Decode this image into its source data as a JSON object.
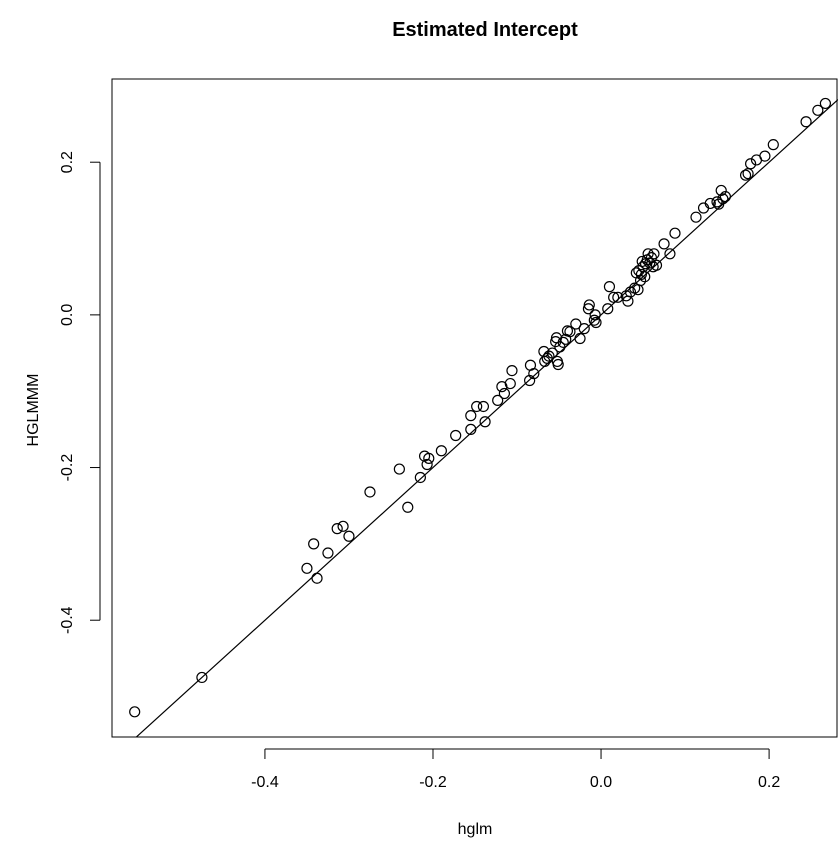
{
  "chart_data": {
    "type": "scatter",
    "title": "Estimated Intercept",
    "xlabel": "hglm",
    "ylabel": "HGLMMM",
    "xlim": [
      -0.582,
      0.282
    ],
    "ylim": [
      -0.553,
      0.309
    ],
    "xticks": [
      -0.4,
      -0.2,
      0.0,
      0.2
    ],
    "xtick_labels": [
      "-0.4",
      "-0.2",
      "0.0",
      "0.2"
    ],
    "yticks": [
      -0.4,
      -0.2,
      0.0,
      0.2
    ],
    "ytick_labels": [
      "-0.4",
      "-0.2",
      "0.0",
      "0.2"
    ],
    "grid": false,
    "reference_line": {
      "intercept": 0.0,
      "slope": 1.0
    },
    "points": [
      [
        -0.555,
        -0.52
      ],
      [
        -0.475,
        -0.475
      ],
      [
        -0.35,
        -0.332
      ],
      [
        -0.342,
        -0.3
      ],
      [
        -0.338,
        -0.345
      ],
      [
        -0.325,
        -0.312
      ],
      [
        -0.314,
        -0.28
      ],
      [
        -0.307,
        -0.277
      ],
      [
        -0.3,
        -0.29
      ],
      [
        -0.275,
        -0.232
      ],
      [
        -0.24,
        -0.202
      ],
      [
        -0.23,
        -0.252
      ],
      [
        -0.215,
        -0.213
      ],
      [
        -0.21,
        -0.185
      ],
      [
        -0.207,
        -0.196
      ],
      [
        -0.205,
        -0.188
      ],
      [
        -0.19,
        -0.178
      ],
      [
        -0.173,
        -0.158
      ],
      [
        -0.155,
        -0.15
      ],
      [
        -0.155,
        -0.132
      ],
      [
        -0.148,
        -0.12
      ],
      [
        -0.14,
        -0.12
      ],
      [
        -0.138,
        -0.14
      ],
      [
        -0.123,
        -0.112
      ],
      [
        -0.118,
        -0.094
      ],
      [
        -0.115,
        -0.103
      ],
      [
        -0.108,
        -0.09
      ],
      [
        -0.106,
        -0.073
      ],
      [
        -0.085,
        -0.086
      ],
      [
        -0.084,
        -0.066
      ],
      [
        -0.08,
        -0.077
      ],
      [
        -0.068,
        -0.048
      ],
      [
        -0.067,
        -0.061
      ],
      [
        -0.064,
        -0.057
      ],
      [
        -0.062,
        -0.054
      ],
      [
        -0.058,
        -0.05
      ],
      [
        -0.054,
        -0.035
      ],
      [
        -0.053,
        -0.03
      ],
      [
        -0.052,
        -0.061
      ],
      [
        -0.051,
        -0.065
      ],
      [
        -0.049,
        -0.042
      ],
      [
        -0.045,
        -0.036
      ],
      [
        -0.042,
        -0.032
      ],
      [
        -0.04,
        -0.021
      ],
      [
        -0.037,
        -0.022
      ],
      [
        -0.03,
        -0.012
      ],
      [
        -0.025,
        -0.031
      ],
      [
        -0.02,
        -0.018
      ],
      [
        -0.015,
        0.008
      ],
      [
        -0.014,
        0.013
      ],
      [
        -0.008,
        -0.007
      ],
      [
        -0.007,
        0.0
      ],
      [
        -0.006,
        -0.01
      ],
      [
        0.008,
        0.008
      ],
      [
        0.01,
        0.037
      ],
      [
        0.015,
        0.023
      ],
      [
        0.02,
        0.023
      ],
      [
        0.03,
        0.025
      ],
      [
        0.032,
        0.018
      ],
      [
        0.035,
        0.03
      ],
      [
        0.04,
        0.035
      ],
      [
        0.042,
        0.055
      ],
      [
        0.044,
        0.033
      ],
      [
        0.045,
        0.058
      ],
      [
        0.047,
        0.045
      ],
      [
        0.048,
        0.053
      ],
      [
        0.049,
        0.07
      ],
      [
        0.05,
        0.063
      ],
      [
        0.052,
        0.05
      ],
      [
        0.053,
        0.067
      ],
      [
        0.055,
        0.072
      ],
      [
        0.056,
        0.08
      ],
      [
        0.058,
        0.068
      ],
      [
        0.06,
        0.075
      ],
      [
        0.062,
        0.063
      ],
      [
        0.063,
        0.08
      ],
      [
        0.066,
        0.065
      ],
      [
        0.075,
        0.093
      ],
      [
        0.082,
        0.08
      ],
      [
        0.088,
        0.107
      ],
      [
        0.113,
        0.128
      ],
      [
        0.122,
        0.14
      ],
      [
        0.13,
        0.146
      ],
      [
        0.138,
        0.148
      ],
      [
        0.14,
        0.145
      ],
      [
        0.143,
        0.163
      ],
      [
        0.145,
        0.152
      ],
      [
        0.148,
        0.155
      ],
      [
        0.172,
        0.183
      ],
      [
        0.175,
        0.185
      ],
      [
        0.178,
        0.198
      ],
      [
        0.185,
        0.203
      ],
      [
        0.195,
        0.208
      ],
      [
        0.205,
        0.223
      ],
      [
        0.244,
        0.253
      ],
      [
        0.258,
        0.268
      ],
      [
        0.267,
        0.277
      ]
    ]
  }
}
